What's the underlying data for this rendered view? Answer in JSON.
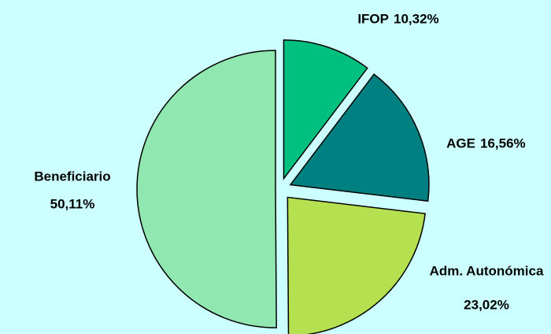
{
  "chart_data": {
    "type": "pie",
    "categories": [
      "IFOP",
      "AGE",
      "Adm. Autonómica",
      "Beneficiario"
    ],
    "values": [
      10.32,
      16.56,
      23.02,
      50.11
    ],
    "value_labels": [
      "10,32%",
      "16,56%",
      "23,02%",
      "50,11%"
    ],
    "colors": [
      "#00c080",
      "#008080",
      "#b5e050",
      "#90e8b0"
    ]
  }
}
